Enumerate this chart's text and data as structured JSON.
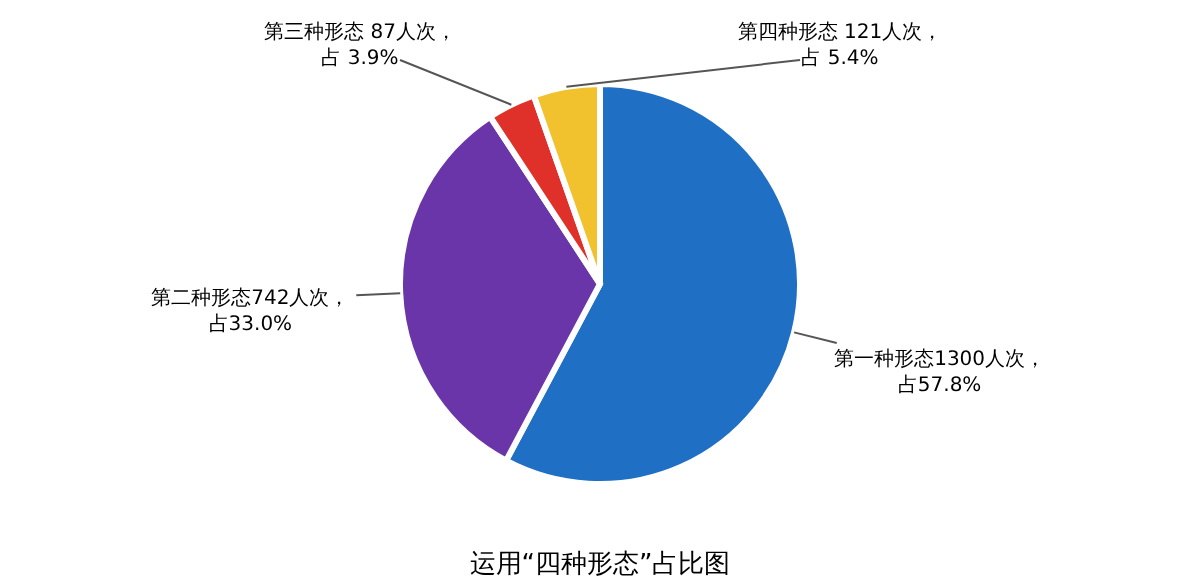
{
  "chart_data": {
    "type": "pie",
    "title": "运用“四种形态”占比图",
    "categories": [
      "第一种形态",
      "第二种形态",
      "第三种形态",
      "第四种形态"
    ],
    "values": [
      1300,
      742,
      87,
      121
    ],
    "colors": [
      "#1f6fc4",
      "#6a35a8",
      "#e0302a",
      "#f2c12e"
    ],
    "value_labels": [
      "1300人次，占57.8%",
      "742人次，占33.0%",
      " 87人次，占 3.9%",
      " 121人次，占 5.4%"
    ]
  }
}
